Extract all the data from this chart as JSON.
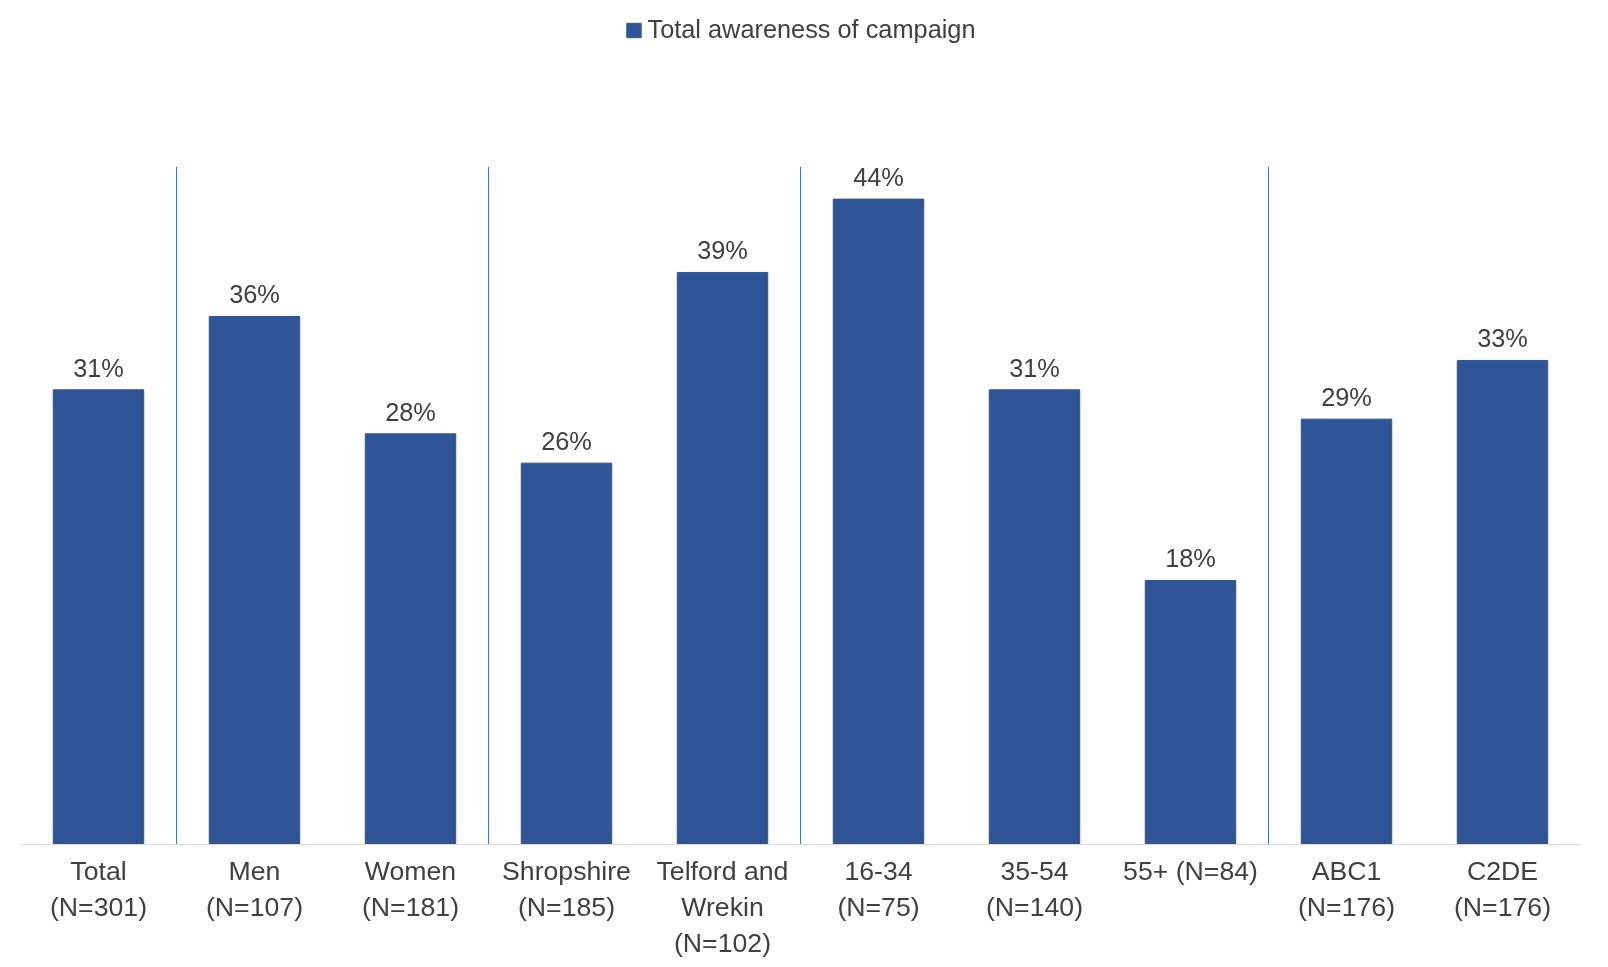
{
  "chart_data": {
    "type": "bar",
    "categories": [
      "Total\n(N=301)",
      "Men\n(N=107)",
      "Women\n(N=181)",
      "Shropshire\n(N=185)",
      "Telford and\nWrekin\n(N=102)",
      "16-34\n(N=75)",
      "35-54\n(N=140)",
      "55+ (N=84)",
      "ABC1\n(N=176)",
      "C2DE\n(N=176)"
    ],
    "series": [
      {
        "name": "Total awareness of campaign",
        "color": "#2f5597",
        "values": [
          31,
          36,
          28,
          26,
          39,
          44,
          31,
          18,
          29,
          33
        ],
        "value_labels": [
          "31%",
          "36%",
          "28%",
          "26%",
          "39%",
          "44%",
          "31%",
          "18%",
          "29%",
          "33%"
        ]
      }
    ],
    "legend": "top",
    "grid": false
  }
}
